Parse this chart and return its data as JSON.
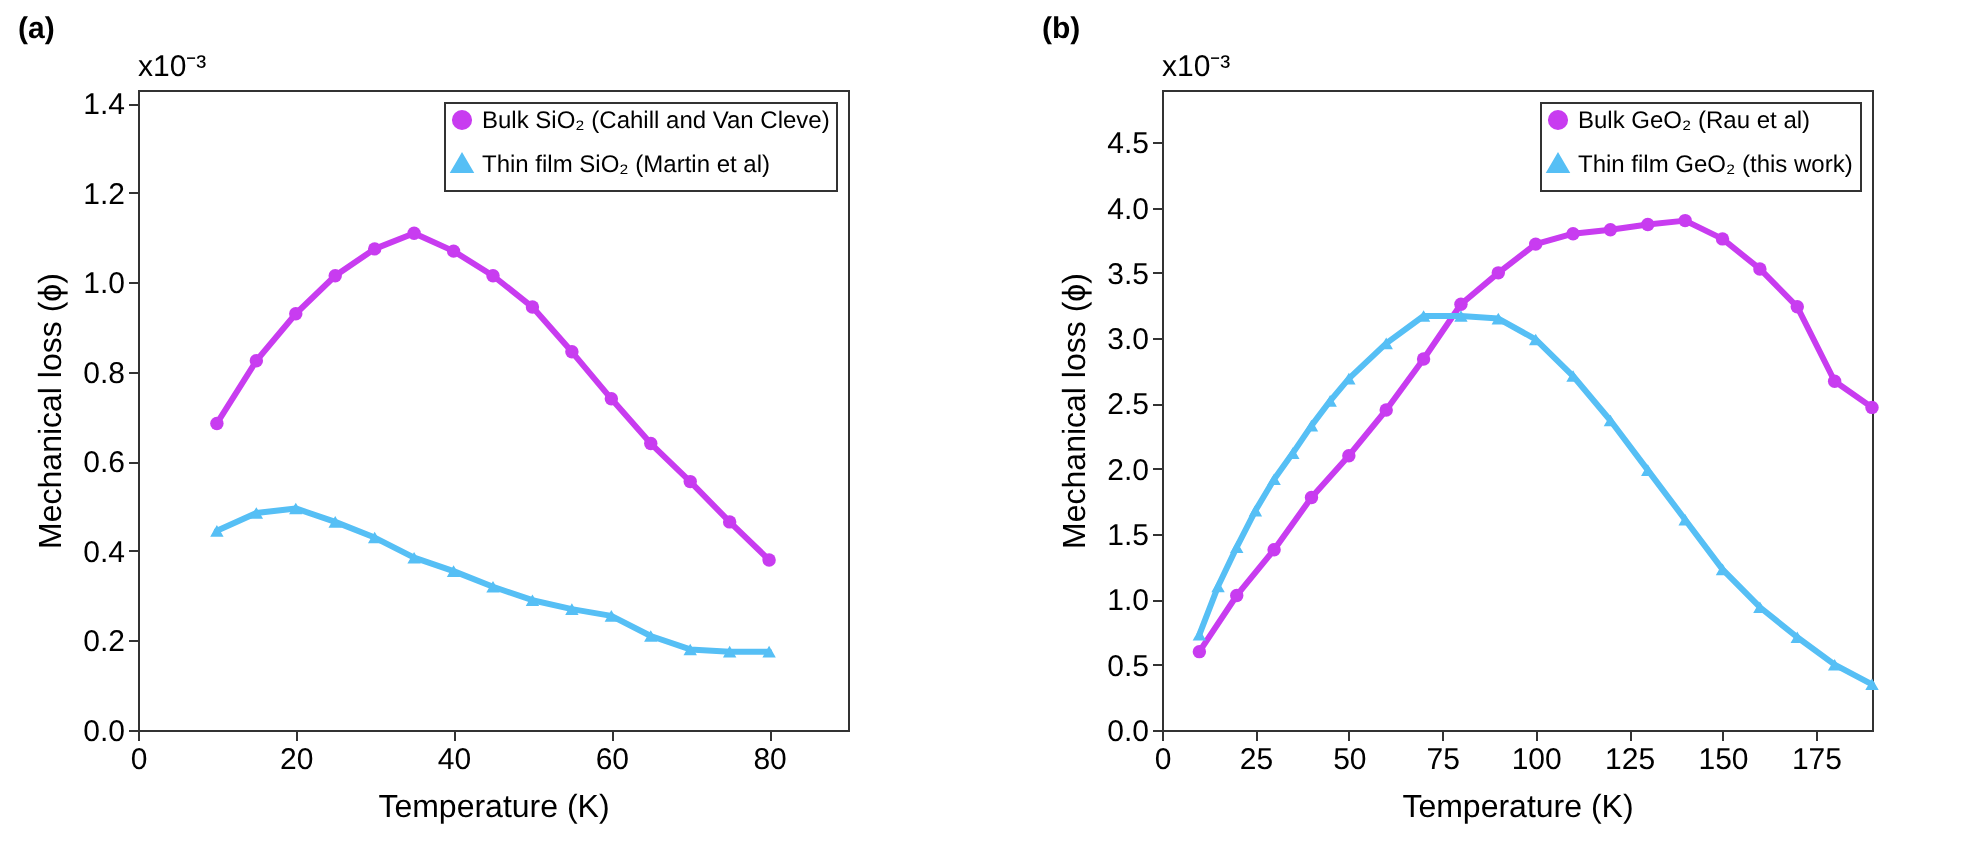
{
  "chart_data": [
    {
      "type": "line",
      "title": "(a)",
      "xlabel": "Temperature (K)",
      "ylabel": "Mechanical loss (ϕ)",
      "annotations": [
        "x10⁻³"
      ],
      "xlim": [
        0,
        90
      ],
      "xticks": [
        0,
        20,
        40,
        60,
        80
      ],
      "ylim": [
        0,
        1.43
      ],
      "yticks": [
        {
          "value": 0,
          "label": "0.0"
        },
        0.2,
        0.4,
        0.6,
        0.8,
        {
          "value": 1,
          "label": "1.0"
        },
        1.2,
        1.4
      ],
      "grid": false,
      "legend": "top right",
      "line_style": "solid",
      "series": [
        {
          "name": "Bulk SiO₂ (Cahill and Van Cleve)",
          "color": "#c83cf0",
          "marker": "circle",
          "x": [
            10,
            15,
            20,
            25,
            30,
            35,
            40,
            45,
            50,
            55,
            60,
            65,
            70,
            75,
            80
          ],
          "values": [
            0.685,
            0.825,
            0.93,
            1.015,
            1.075,
            1.11,
            1.07,
            1.015,
            0.945,
            0.845,
            0.74,
            0.64,
            0.555,
            0.465,
            0.38
          ]
        },
        {
          "name": "Thin film SiO₂ (Martin et al)",
          "color": "#56bff5",
          "marker": "triangle",
          "x": [
            10,
            15,
            20,
            25,
            30,
            35,
            40,
            45,
            50,
            55,
            60,
            65,
            70,
            75,
            80
          ],
          "values": [
            0.445,
            0.485,
            0.495,
            0.465,
            0.43,
            0.385,
            0.355,
            0.32,
            0.29,
            0.27,
            0.255,
            0.21,
            0.18,
            0.175,
            0.175
          ]
        }
      ]
    },
    {
      "type": "line",
      "title": "(b)",
      "xlabel": "Temperature (K)",
      "ylabel": "Mechanical loss (ϕ)",
      "annotations": [
        "x10⁻³"
      ],
      "xlim": [
        0,
        190
      ],
      "xticks": [
        0,
        25,
        50,
        75,
        100,
        125,
        150,
        175
      ],
      "ylim": [
        0,
        4.9
      ],
      "yticks": [
        {
          "value": 0,
          "label": "0.0"
        },
        0.5,
        {
          "value": 1,
          "label": "1.0"
        },
        1.5,
        {
          "value": 2,
          "label": "2.0"
        },
        2.5,
        {
          "value": 3,
          "label": "3.0"
        },
        3.5,
        {
          "value": 4,
          "label": "4.0"
        },
        4.5
      ],
      "grid": false,
      "legend": "top right",
      "line_style": "solid",
      "series": [
        {
          "name": "Bulk GeO₂ (Rau et al)",
          "color": "#c83cf0",
          "marker": "circle",
          "x": [
            10,
            20,
            30,
            40,
            50,
            60,
            70,
            80,
            90,
            100,
            110,
            120,
            130,
            140,
            150,
            160,
            170,
            180,
            190
          ],
          "values": [
            0.6,
            1.03,
            1.38,
            1.78,
            2.1,
            2.45,
            2.84,
            3.26,
            3.5,
            3.72,
            3.8,
            3.83,
            3.87,
            3.9,
            3.76,
            3.53,
            3.24,
            2.67,
            2.47
          ]
        },
        {
          "name": "Thin film GeO₂ (this work)",
          "color": "#56bff5",
          "marker": "triangle",
          "x": [
            10,
            15,
            20,
            25,
            30,
            35,
            40,
            45,
            50,
            60,
            70,
            80,
            90,
            100,
            110,
            120,
            130,
            140,
            150,
            160,
            170,
            180,
            190
          ],
          "values": [
            0.73,
            1.1,
            1.4,
            1.68,
            1.92,
            2.12,
            2.33,
            2.52,
            2.69,
            2.96,
            3.17,
            3.17,
            3.15,
            2.99,
            2.71,
            2.37,
            1.99,
            1.61,
            1.23,
            0.94,
            0.71,
            0.5,
            0.35
          ]
        }
      ]
    }
  ]
}
